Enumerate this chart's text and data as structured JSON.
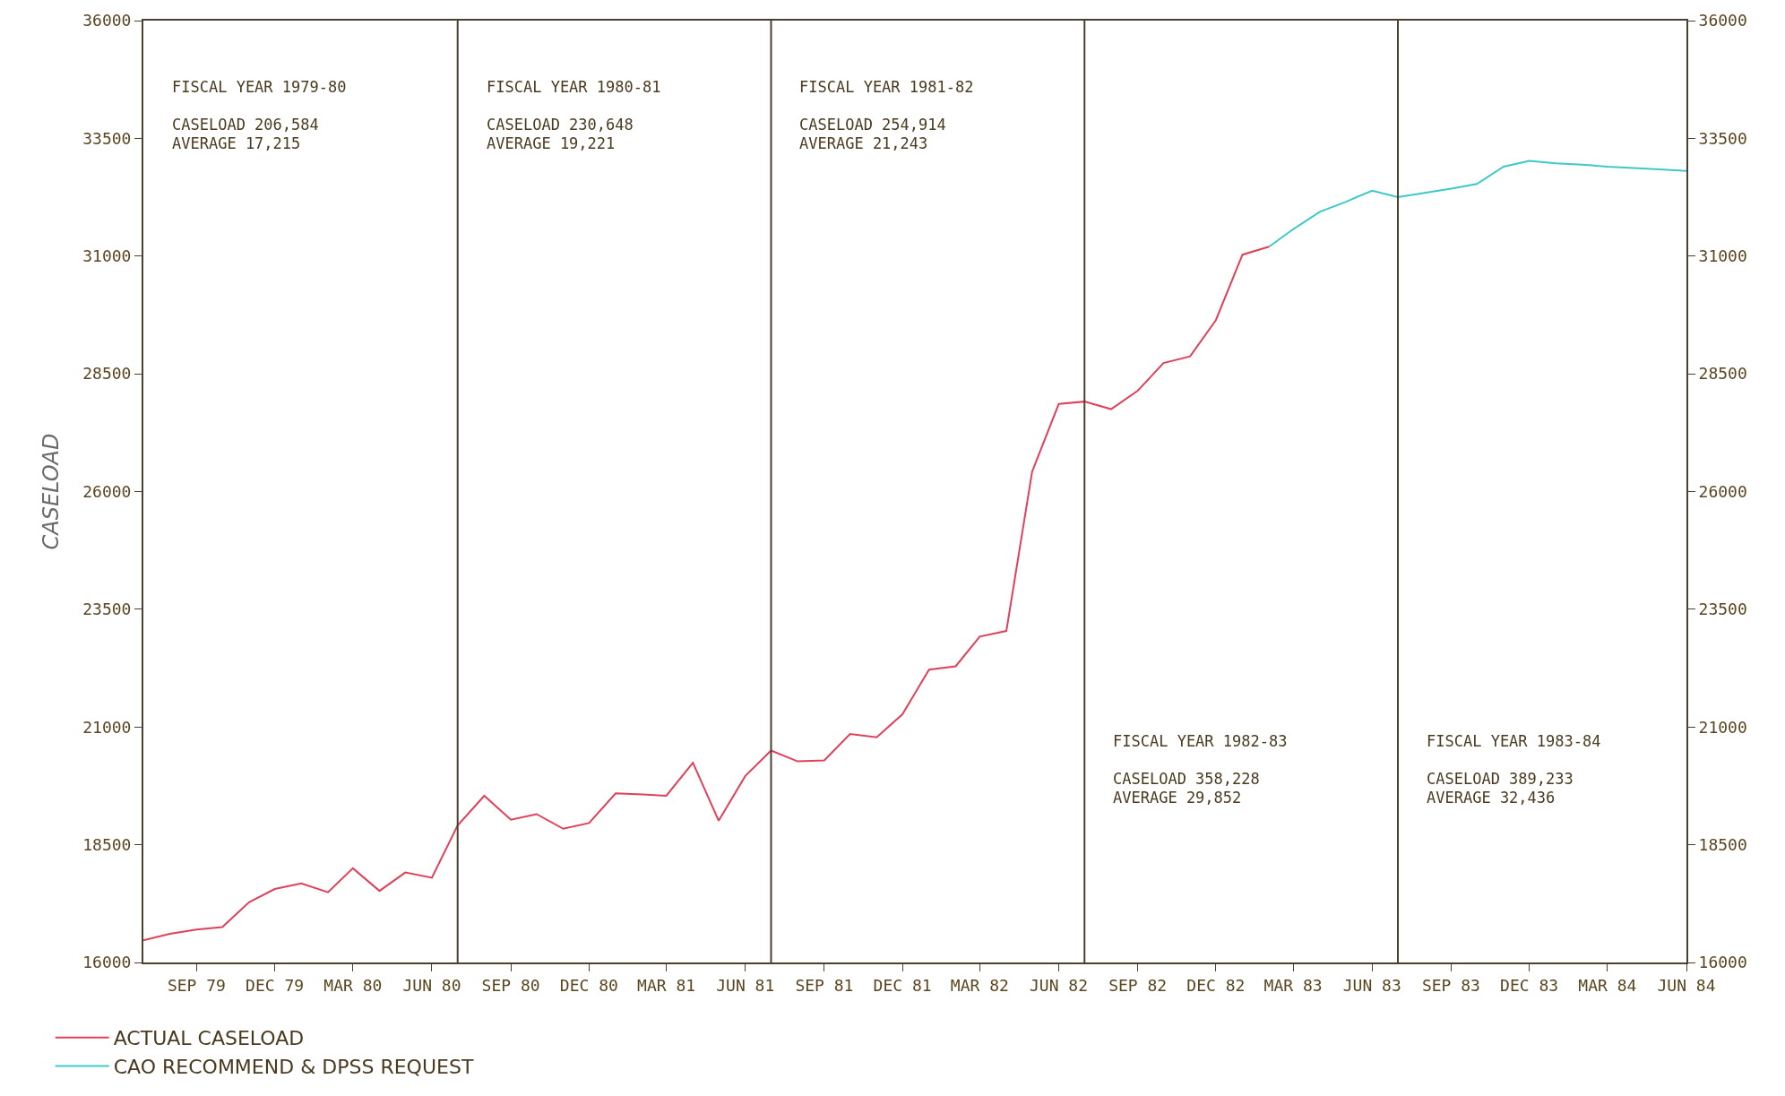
{
  "chart_data": {
    "type": "line",
    "ylabel": "CASELOAD",
    "x": [
      "1979-07",
      "1979-08",
      "1979-09",
      "1979-10",
      "1979-11",
      "1979-12",
      "1980-01",
      "1980-02",
      "1980-03",
      "1980-04",
      "1980-05",
      "1980-06",
      "1980-07",
      "1980-08",
      "1980-09",
      "1980-10",
      "1980-11",
      "1980-12",
      "1981-01",
      "1981-02",
      "1981-03",
      "1981-04",
      "1981-05",
      "1981-06",
      "1981-07",
      "1981-08",
      "1981-09",
      "1981-10",
      "1981-11",
      "1981-12",
      "1982-01",
      "1982-02",
      "1982-03",
      "1982-04",
      "1982-05",
      "1982-06",
      "1982-07",
      "1982-08",
      "1982-09",
      "1982-10",
      "1982-11",
      "1982-12",
      "1983-01",
      "1983-02"
    ],
    "series": [
      {
        "name": "ACTUAL CASELOAD",
        "color": "#e0405a",
        "values": [
          16470,
          16610,
          16700,
          16750,
          17280,
          17560,
          17680,
          17490,
          18000,
          17520,
          17910,
          17800,
          18910,
          19540,
          19030,
          19150,
          18840,
          18960,
          19590,
          19570,
          19540,
          20240,
          19010,
          19960,
          20500,
          20270,
          20290,
          20850,
          20780,
          21270,
          22220,
          22290,
          22920,
          23040,
          26420,
          27860,
          27910,
          27750,
          28140,
          28730,
          28870,
          29640,
          31030,
          31200
        ]
      },
      {
        "name": "CAO RECOMMEND & DPSS REQUEST",
        "color": "#3ec8c8",
        "x": [
          "1983-02",
          "1983-03",
          "1983-04",
          "1983-05",
          "1983-06",
          "1983-07",
          "1983-08",
          "1983-09",
          "1983-10",
          "1983-11",
          "1983-12",
          "1984-01",
          "1984-02",
          "1984-03",
          "1984-04",
          "1984-05",
          "1984-06"
        ],
        "values": [
          31200,
          31570,
          31940,
          32150,
          32390,
          32250,
          32340,
          32430,
          32530,
          32900,
          33020,
          32970,
          32940,
          32900,
          32870,
          32840,
          32810
        ]
      }
    ],
    "xlim": [
      "1979-07",
      "1984-06"
    ],
    "xticks": [
      {
        "value": "1979-09",
        "label": "SEP 79"
      },
      {
        "value": "1979-12",
        "label": "DEC 79"
      },
      {
        "value": "1980-03",
        "label": "MAR 80"
      },
      {
        "value": "1980-06",
        "label": "JUN 80"
      },
      {
        "value": "1980-09",
        "label": "SEP 80"
      },
      {
        "value": "1980-12",
        "label": "DEC 80"
      },
      {
        "value": "1981-03",
        "label": "MAR 81"
      },
      {
        "value": "1981-06",
        "label": "JUN 81"
      },
      {
        "value": "1981-09",
        "label": "SEP 81"
      },
      {
        "value": "1981-12",
        "label": "DEC 81"
      },
      {
        "value": "1982-03",
        "label": "MAR 82"
      },
      {
        "value": "1982-06",
        "label": "JUN 82"
      },
      {
        "value": "1982-09",
        "label": "SEP 82"
      },
      {
        "value": "1982-12",
        "label": "DEC 82"
      },
      {
        "value": "1983-03",
        "label": "MAR 83"
      },
      {
        "value": "1983-06",
        "label": "JUN 83"
      },
      {
        "value": "1983-09",
        "label": "SEP 83"
      },
      {
        "value": "1983-12",
        "label": "DEC 83"
      },
      {
        "value": "1984-03",
        "label": "MAR 84"
      },
      {
        "value": "1984-06",
        "label": "JUN 84"
      }
    ],
    "ylim": [
      16000,
      36000
    ],
    "yticks": [
      16000,
      18500,
      21000,
      23500,
      26000,
      28500,
      31000,
      33500,
      36000
    ],
    "y2lim": [
      16000,
      36000
    ],
    "y2ticks": [
      16000,
      18500,
      21000,
      23500,
      26000,
      28500,
      31000,
      33500,
      36000
    ],
    "ref_lines": [
      {
        "axis": "x",
        "value": "1980-07",
        "color": "#4a4030"
      },
      {
        "axis": "x",
        "value": "1981-07",
        "color": "#4a4030"
      },
      {
        "axis": "x",
        "value": "1982-07",
        "color": "#4a4030"
      },
      {
        "axis": "x",
        "value": "1983-07",
        "color": "#4a4030"
      }
    ],
    "annotations": [
      "FISCAL YEAR 1979-80",
      "CASELOAD 206,584",
      "AVERAGE 17,215",
      "FISCAL YEAR 1980-81",
      "CASELOAD 230,648",
      "AVERAGE 19,221",
      "FISCAL YEAR 1981-82",
      "CASELOAD 254,914",
      "AVERAGE 21,243",
      "FISCAL YEAR 1982-83",
      "CASELOAD 358,228",
      "AVERAGE 29,852",
      "FISCAL YEAR 1983-84",
      "CASELOAD 389,233",
      "AVERAGE 32,436"
    ],
    "grid": false,
    "legend": "bottom left",
    "marker": "none",
    "line_style": "solid"
  }
}
